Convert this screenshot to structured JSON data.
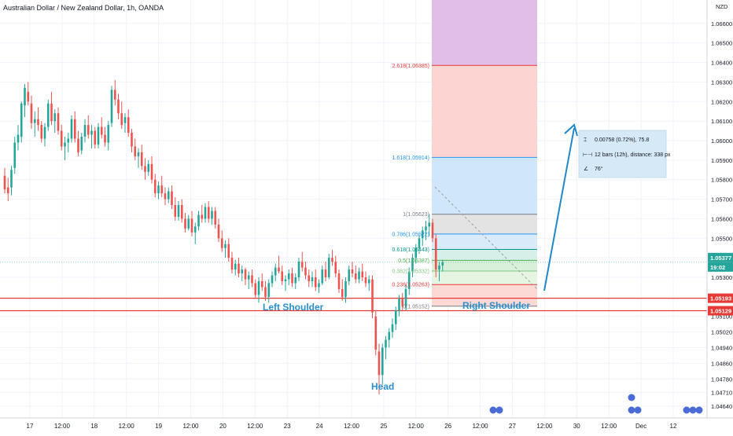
{
  "header": {
    "title": "Australian Dollar / New Zealand Dollar, 1h, OANDA",
    "currency": "NZD"
  },
  "chart_data": {
    "type": "candlestick",
    "title": "Australian Dollar / New Zealand Dollar, 1h, OANDA",
    "ylim": [
      1.0458,
      1.0672
    ],
    "grid": true,
    "y_ticks": [
      "1.06600",
      "1.06500",
      "1.06400",
      "1.06300",
      "1.06200",
      "1.06100",
      "1.06000",
      "1.05900",
      "1.05800",
      "1.05700",
      "1.05600",
      "1.05500",
      "1.05400",
      "1.05300",
      "1.05100",
      "1.05020",
      "1.04940",
      "1.04860",
      "1.04780",
      "1.04710",
      "1.04640"
    ],
    "x_ticks": [
      "17",
      "12:00",
      "18",
      "12:00",
      "19",
      "12:00",
      "20",
      "12:00",
      "23",
      "24",
      "12:00",
      "25",
      "12:00",
      "26",
      "12:00",
      "27",
      "12:00",
      "30",
      "12:00",
      "Dec",
      "12"
    ],
    "price_tags": [
      {
        "value": "1.05377",
        "color": "#26a69a"
      },
      {
        "value": "19:02",
        "color": "#26a69a"
      },
      {
        "value": "1.05193",
        "color": "#e53935"
      },
      {
        "value": "1.05129",
        "color": "#e53935"
      }
    ],
    "horizontal_lines": [
      {
        "price": 1.05193,
        "color": "#e53935"
      },
      {
        "price": 1.05129,
        "color": "#e53935"
      }
    ],
    "fib_levels": [
      {
        "label": "2.618(1.06385)",
        "price": 1.06385,
        "color": "#e53935"
      },
      {
        "label": "1.618(1.05914)",
        "price": 1.05914,
        "color": "#2196f3"
      },
      {
        "label": "1(1.05623)",
        "price": 1.05623,
        "color": "#787b86"
      },
      {
        "label": "0.786(1.05522)",
        "price": 1.05522,
        "color": "#2196f3"
      },
      {
        "label": "0.618(1.05443)",
        "price": 1.05443,
        "color": "#009688"
      },
      {
        "label": "0.5(1.05387)",
        "price": 1.05387,
        "color": "#4caf50"
      },
      {
        "label": "0.382(1.05332)",
        "price": 1.05332,
        "color": "#81c784"
      },
      {
        "label": "0.236(1.05263)",
        "price": 1.05263,
        "color": "#e53935"
      },
      {
        "label": "0(1.05152)",
        "price": 1.05152,
        "color": "#787b86"
      }
    ],
    "fib_zones": [
      {
        "from": 1.06385,
        "to": 1.0672,
        "color": "#e1bee7"
      },
      {
        "from": 1.05914,
        "to": 1.06385,
        "color": "#fcd5d2"
      },
      {
        "from": 1.05623,
        "to": 1.05914,
        "color": "#cfe6fb"
      },
      {
        "from": 1.05522,
        "to": 1.05623,
        "color": "#e3e3e3"
      },
      {
        "from": 1.05443,
        "to": 1.05522,
        "color": "#d9ebfb"
      },
      {
        "from": 1.05387,
        "to": 1.05443,
        "color": "#d6efe9"
      },
      {
        "from": 1.05332,
        "to": 1.05387,
        "color": "#d8f0d9"
      },
      {
        "from": 1.05263,
        "to": 1.05332,
        "color": "#e6f5e1"
      },
      {
        "from": 1.05152,
        "to": 1.05263,
        "color": "#fdd9d6"
      }
    ],
    "annotations": [
      "Left Shoulder",
      "Right Shoulder",
      "Head"
    ],
    "stats_box": {
      "line1": "0.00758 (0.72%), 75.8",
      "line2": "12 bars (12h), distance: 338 px",
      "line3": "76°"
    },
    "candles": [
      [
        1.0582,
        1.0586,
        1.0573,
        1.0575
      ],
      [
        1.0576,
        1.0581,
        1.0569,
        1.0573
      ],
      [
        1.0576,
        1.0587,
        1.0572,
        1.0585
      ],
      [
        1.0586,
        1.0602,
        1.0583,
        1.0599
      ],
      [
        1.0599,
        1.0608,
        1.0595,
        1.0603
      ],
      [
        1.0602,
        1.062,
        1.0599,
        1.0619
      ],
      [
        1.0618,
        1.0629,
        1.0612,
        1.0627
      ],
      [
        1.0625,
        1.063,
        1.0618,
        1.062
      ],
      [
        1.0619,
        1.0623,
        1.0606,
        1.0609
      ],
      [
        1.0609,
        1.0615,
        1.0602,
        1.0611
      ],
      [
        1.0611,
        1.0617,
        1.0605,
        1.0608
      ],
      [
        1.0608,
        1.061,
        1.0599,
        1.0601
      ],
      [
        1.0601,
        1.0609,
        1.0597,
        1.0607
      ],
      [
        1.0607,
        1.0621,
        1.0605,
        1.0619
      ],
      [
        1.0619,
        1.0625,
        1.0608,
        1.061
      ],
      [
        1.061,
        1.0616,
        1.0604,
        1.0614
      ],
      [
        1.0614,
        1.0617,
        1.0603,
        1.0605
      ],
      [
        1.0605,
        1.0608,
        1.0595,
        1.0597
      ],
      [
        1.0597,
        1.0602,
        1.059,
        1.0599
      ],
      [
        1.0599,
        1.0604,
        1.0594,
        1.0601
      ],
      [
        1.0601,
        1.0613,
        1.0599,
        1.0611
      ],
      [
        1.0611,
        1.0615,
        1.0599,
        1.0601
      ],
      [
        1.0601,
        1.0605,
        1.0592,
        1.0594
      ],
      [
        1.0595,
        1.0604,
        1.0593,
        1.0602
      ],
      [
        1.0602,
        1.0611,
        1.0599,
        1.0608
      ],
      [
        1.0608,
        1.0613,
        1.0601,
        1.0603
      ],
      [
        1.0603,
        1.0608,
        1.0596,
        1.0605
      ],
      [
        1.0605,
        1.0607,
        1.0596,
        1.0598
      ],
      [
        1.0598,
        1.0609,
        1.0596,
        1.0607
      ],
      [
        1.0607,
        1.0612,
        1.0601,
        1.0603
      ],
      [
        1.0603,
        1.0607,
        1.0597,
        1.0599
      ],
      [
        1.0599,
        1.061,
        1.0595,
        1.0608
      ],
      [
        1.0609,
        1.0628,
        1.0607,
        1.0626
      ],
      [
        1.0626,
        1.0631,
        1.0618,
        1.0621
      ],
      [
        1.0621,
        1.0624,
        1.0611,
        1.0614
      ],
      [
        1.0614,
        1.062,
        1.0606,
        1.0608
      ],
      [
        1.0609,
        1.0614,
        1.0604,
        1.0612
      ],
      [
        1.0612,
        1.0616,
        1.0602,
        1.0604
      ],
      [
        1.0604,
        1.0606,
        1.0594,
        1.0597
      ],
      [
        1.0597,
        1.0601,
        1.059,
        1.0592
      ],
      [
        1.0592,
        1.0596,
        1.0586,
        1.0594
      ],
      [
        1.0594,
        1.0598,
        1.0585,
        1.0587
      ],
      [
        1.0587,
        1.0591,
        1.058,
        1.0584
      ],
      [
        1.0584,
        1.059,
        1.0582,
        1.0588
      ],
      [
        1.0588,
        1.0592,
        1.0578,
        1.058
      ],
      [
        1.058,
        1.0583,
        1.0571,
        1.0573
      ],
      [
        1.0573,
        1.0579,
        1.057,
        1.0577
      ],
      [
        1.0577,
        1.0582,
        1.0571,
        1.0573
      ],
      [
        1.0573,
        1.0576,
        1.0567,
        1.057
      ],
      [
        1.057,
        1.0576,
        1.0568,
        1.0574
      ],
      [
        1.0574,
        1.0577,
        1.0565,
        1.0567
      ],
      [
        1.0567,
        1.0571,
        1.0559,
        1.0561
      ],
      [
        1.0561,
        1.0569,
        1.0559,
        1.0567
      ],
      [
        1.0567,
        1.057,
        1.0558,
        1.056
      ],
      [
        1.056,
        1.0563,
        1.0553,
        1.0555
      ],
      [
        1.0555,
        1.0562,
        1.0554,
        1.056
      ],
      [
        1.056,
        1.0564,
        1.0551,
        1.0553
      ],
      [
        1.0553,
        1.0558,
        1.0547,
        1.0556
      ],
      [
        1.0556,
        1.0564,
        1.0554,
        1.0562
      ],
      [
        1.0562,
        1.0567,
        1.0558,
        1.056
      ],
      [
        1.056,
        1.0568,
        1.0558,
        1.0566
      ],
      [
        1.0566,
        1.0569,
        1.0558,
        1.056
      ],
      [
        1.056,
        1.0566,
        1.0557,
        1.0564
      ],
      [
        1.0564,
        1.0566,
        1.0555,
        1.0557
      ],
      [
        1.0557,
        1.056,
        1.0548,
        1.055
      ],
      [
        1.055,
        1.0554,
        1.0543,
        1.0545
      ],
      [
        1.0545,
        1.0549,
        1.054,
        1.0547
      ],
      [
        1.0547,
        1.055,
        1.0538,
        1.054
      ],
      [
        1.054,
        1.0543,
        1.0532,
        1.0534
      ],
      [
        1.0534,
        1.0539,
        1.0531,
        1.0537
      ],
      [
        1.0537,
        1.054,
        1.053,
        1.0532
      ],
      [
        1.0532,
        1.0536,
        1.0528,
        1.0534
      ],
      [
        1.0534,
        1.0535,
        1.0526,
        1.0529
      ],
      [
        1.0529,
        1.0533,
        1.0524,
        1.0531
      ],
      [
        1.0531,
        1.0534,
        1.0525,
        1.0527
      ],
      [
        1.0527,
        1.0529,
        1.0519,
        1.0521
      ],
      [
        1.0521,
        1.053,
        1.0517,
        1.0528
      ],
      [
        1.0528,
        1.0532,
        1.0523,
        1.0525
      ],
      [
        1.0525,
        1.0528,
        1.0518,
        1.052
      ],
      [
        1.052,
        1.0529,
        1.0517,
        1.0527
      ],
      [
        1.0527,
        1.0533,
        1.0525,
        1.0531
      ],
      [
        1.0531,
        1.0537,
        1.0528,
        1.0535
      ],
      [
        1.0535,
        1.0541,
        1.0532,
        1.0533
      ],
      [
        1.0533,
        1.0536,
        1.0526,
        1.0528
      ],
      [
        1.0528,
        1.0531,
        1.0523,
        1.0529
      ],
      [
        1.0529,
        1.0534,
        1.0526,
        1.0532
      ],
      [
        1.0532,
        1.0535,
        1.0525,
        1.0527
      ],
      [
        1.0527,
        1.0532,
        1.0524,
        1.053
      ],
      [
        1.053,
        1.054,
        1.0528,
        1.0538
      ],
      [
        1.0538,
        1.0543,
        1.0533,
        1.0535
      ],
      [
        1.0535,
        1.0538,
        1.0529,
        1.0531
      ],
      [
        1.0531,
        1.0534,
        1.0525,
        1.0528
      ],
      [
        1.0528,
        1.0533,
        1.0525,
        1.053
      ],
      [
        1.053,
        1.0534,
        1.0523,
        1.0525
      ],
      [
        1.0525,
        1.0529,
        1.0522,
        1.0527
      ],
      [
        1.0527,
        1.0536,
        1.0526,
        1.0534
      ],
      [
        1.0534,
        1.0538,
        1.0528,
        1.053
      ],
      [
        1.053,
        1.0542,
        1.0529,
        1.054
      ],
      [
        1.054,
        1.0544,
        1.0536,
        1.0538
      ],
      [
        1.0538,
        1.0541,
        1.053,
        1.0532
      ],
      [
        1.0532,
        1.0534,
        1.0522,
        1.0524
      ],
      [
        1.0524,
        1.0529,
        1.0518,
        1.052
      ],
      [
        1.052,
        1.053,
        1.0517,
        1.0528
      ],
      [
        1.0528,
        1.0536,
        1.0526,
        1.0534
      ],
      [
        1.0534,
        1.0538,
        1.053,
        1.0532
      ],
      [
        1.0532,
        1.0536,
        1.0527,
        1.0529
      ],
      [
        1.0529,
        1.0535,
        1.0527,
        1.0533
      ],
      [
        1.0533,
        1.0537,
        1.0528,
        1.053
      ],
      [
        1.053,
        1.0533,
        1.0525,
        1.0527
      ],
      [
        1.0527,
        1.0531,
        1.0523,
        1.0529
      ],
      [
        1.0529,
        1.0531,
        1.0509,
        1.0512
      ],
      [
        1.051,
        1.0513,
        1.049,
        1.0493
      ],
      [
        1.0492,
        1.0496,
        1.047,
        1.048
      ],
      [
        1.048,
        1.0496,
        1.0475,
        1.0494
      ],
      [
        1.0494,
        1.05,
        1.0488,
        1.0498
      ],
      [
        1.0498,
        1.0504,
        1.0494,
        1.0502
      ],
      [
        1.0502,
        1.0509,
        1.0499,
        1.0506
      ],
      [
        1.0506,
        1.0515,
        1.0503,
        1.0513
      ],
      [
        1.0513,
        1.0521,
        1.051,
        1.0519
      ],
      [
        1.0519,
        1.0522,
        1.0513,
        1.0515
      ],
      [
        1.0515,
        1.0526,
        1.0513,
        1.0524
      ],
      [
        1.0524,
        1.0535,
        1.0521,
        1.0533
      ],
      [
        1.0533,
        1.0542,
        1.053,
        1.054
      ],
      [
        1.054,
        1.0547,
        1.0537,
        1.0545
      ],
      [
        1.0545,
        1.0552,
        1.0542,
        1.055
      ],
      [
        1.055,
        1.0556,
        1.0546,
        1.0554
      ],
      [
        1.0554,
        1.0559,
        1.0549,
        1.0556
      ],
      [
        1.0556,
        1.05623,
        1.0551,
        1.0558
      ],
      [
        1.0558,
        1.056,
        1.0548,
        1.055
      ],
      [
        1.055,
        1.0552,
        1.053,
        1.0534
      ],
      [
        1.0534,
        1.0538,
        1.0528,
        1.0536
      ],
      [
        1.0536,
        1.0539,
        1.0533,
        1.05377
      ]
    ]
  }
}
